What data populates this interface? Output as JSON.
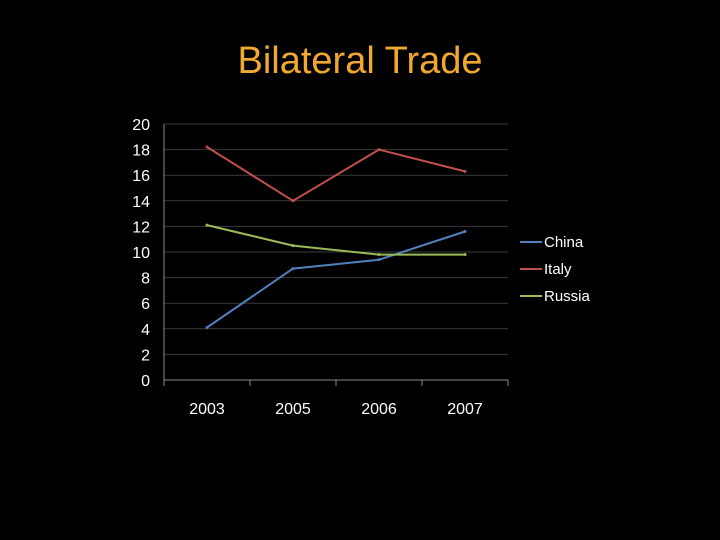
{
  "slide": {
    "title": "Bilateral Trade",
    "title_color": "#F0A830",
    "background": "#000000"
  },
  "chart_data": {
    "type": "line",
    "title": "",
    "xlabel": "",
    "ylabel": "",
    "categories": [
      "2003",
      "2005",
      "2006",
      "2007"
    ],
    "ylim": [
      0,
      20
    ],
    "y_ticks": [
      0,
      2,
      4,
      6,
      8,
      10,
      12,
      14,
      16,
      18,
      20
    ],
    "grid": true,
    "legend_position": "right",
    "series": [
      {
        "name": "China",
        "color": "#4F81BD",
        "values": [
          4.1,
          8.7,
          9.4,
          11.6
        ]
      },
      {
        "name": "Italy",
        "color": "#C0504D",
        "values": [
          18.2,
          14.0,
          18.0,
          16.3
        ]
      },
      {
        "name": "Russia",
        "color": "#9BBB59",
        "values": [
          12.1,
          10.5,
          9.8,
          9.8
        ]
      }
    ]
  }
}
